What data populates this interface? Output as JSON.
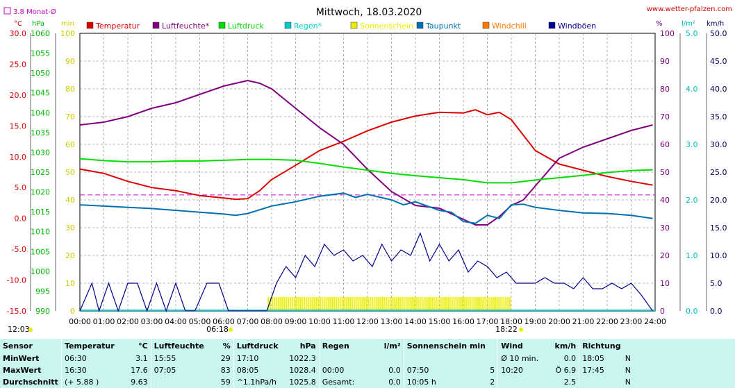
{
  "title": "Mittwoch, 18.03.2020",
  "source": "www.wetter-pfalzen.com",
  "monthly_avg_label": "3.8 Monat-Ø",
  "colors": {
    "temperature": "#dd0000",
    "humidity": "#800080",
    "pressure": "#00dd00",
    "rain": "#00cccc",
    "sunshine": "#eeee00",
    "dewpoint": "#0070b0",
    "windchill": "#ff7700",
    "gusts": "#000090"
  },
  "chart_data": {
    "type": "line",
    "title": "Mittwoch, 18.03.2020",
    "x_labels": [
      "00:00",
      "01:00",
      "02:00",
      "03:00",
      "04:00",
      "05:00",
      "06:00",
      "07:00",
      "08:00",
      "09:00",
      "10:00",
      "11:00",
      "12:00",
      "13:00",
      "14:00",
      "15:00",
      "16:00",
      "17:00",
      "18:00",
      "19:00",
      "20:00",
      "21:00",
      "22:00",
      "23:00",
      "24:00"
    ],
    "xlim": [
      0,
      24
    ],
    "axes": {
      "temperature": {
        "unit": "°C",
        "range": [
          -15,
          30
        ],
        "ticks": [
          "30.0",
          "25.0",
          "20.0",
          "15.0",
          "10.0",
          "5.0",
          "0.0",
          "-5.0",
          "-10.0",
          "-15.0"
        ]
      },
      "pressure": {
        "unit": "hPa",
        "range": [
          990,
          1060
        ],
        "ticks": [
          "1060",
          "1055",
          "1050",
          "1045",
          "1040",
          "1035",
          "1030",
          "1025",
          "1020",
          "1015",
          "1010",
          "1005",
          "1000",
          "995",
          "990"
        ]
      },
      "sunshine": {
        "unit": "min",
        "range": [
          0,
          100
        ],
        "ticks": [
          "100",
          "90",
          "80",
          "70",
          "60",
          "50",
          "40",
          "30",
          "20",
          "10",
          "0"
        ]
      },
      "humidity": {
        "unit": "%",
        "range": [
          0,
          100
        ],
        "ticks": [
          "100",
          "90",
          "80",
          "70",
          "60",
          "50",
          "40",
          "30",
          "20",
          "10",
          "0"
        ]
      },
      "rain": {
        "unit": "l/m²",
        "range": [
          0,
          5
        ],
        "ticks": [
          "5.0",
          "4.0",
          "3.0",
          "2.0",
          "1.0",
          "0.0"
        ]
      },
      "wind": {
        "unit": "km/h",
        "range": [
          0,
          50
        ],
        "ticks": [
          "50.0",
          "45.0",
          "40.0",
          "35.0",
          "30.0",
          "25.0",
          "20.0",
          "15.0",
          "10.0",
          "5.0",
          "0.0"
        ]
      }
    },
    "legend": [
      "Temperatur",
      "Luftfeuchte*",
      "Luftdruck",
      "Regen*",
      "Sonnenschein",
      "Taupunkt",
      "Windchill",
      "Windböen"
    ],
    "monthly_avg_temperature": 3.8,
    "sunrise": "06:18",
    "sunset": "18:22",
    "daylight": "12:03",
    "series": [
      {
        "name": "Temperatur",
        "color": "#dd0000",
        "axis": "temperature",
        "x": [
          0,
          1,
          2,
          3,
          4,
          5,
          6,
          6.5,
          7,
          7.5,
          8,
          9,
          10,
          11,
          12,
          13,
          14,
          15,
          16,
          16.5,
          17,
          17.5,
          18,
          18.5,
          19,
          20,
          21,
          22,
          23,
          23.9
        ],
        "y": [
          8.0,
          7.3,
          6.0,
          5.0,
          4.5,
          3.7,
          3.3,
          3.1,
          3.2,
          4.5,
          6.3,
          8.6,
          11.0,
          12.5,
          14.2,
          15.6,
          16.6,
          17.2,
          17.1,
          17.6,
          16.8,
          17.2,
          16.0,
          13.5,
          11.0,
          8.8,
          7.8,
          6.8,
          6.0,
          5.4
        ]
      },
      {
        "name": "Luftfeuchte*",
        "color": "#800080",
        "axis": "humidity",
        "x": [
          0,
          1,
          2,
          3,
          4,
          5,
          6,
          6.5,
          7,
          7.5,
          8,
          9,
          10,
          11,
          12,
          13,
          14,
          15,
          16,
          16.5,
          17,
          17.5,
          18,
          18.5,
          19,
          20,
          21,
          22,
          23,
          23.9
        ],
        "y": [
          67,
          68,
          70,
          73,
          75,
          78,
          81,
          82,
          83,
          82,
          80,
          73,
          66,
          60,
          51,
          43,
          38,
          37,
          33,
          31,
          31,
          34,
          38,
          40,
          45,
          55,
          59,
          62,
          65,
          67
        ]
      },
      {
        "name": "Luftdruck",
        "color": "#00dd00",
        "axis": "pressure",
        "x": [
          0,
          1,
          2,
          3,
          4,
          5,
          6,
          7,
          8,
          9,
          10,
          11,
          12,
          13,
          14,
          15,
          16,
          17,
          18,
          19,
          20,
          21,
          22,
          23,
          23.9
        ],
        "y": [
          1028.4,
          1027.9,
          1027.6,
          1027.6,
          1027.8,
          1027.8,
          1028.0,
          1028.2,
          1028.2,
          1028.0,
          1027.2,
          1026.3,
          1025.5,
          1024.7,
          1024.1,
          1023.6,
          1023.1,
          1022.3,
          1022.3,
          1023.0,
          1023.6,
          1024.2,
          1024.9,
          1025.4,
          1025.6
        ]
      },
      {
        "name": "Taupunkt",
        "color": "#0070b0",
        "axis": "temperature",
        "x": [
          0,
          1,
          2,
          3,
          4,
          5,
          6,
          6.5,
          7,
          8,
          9,
          10,
          11,
          11.5,
          12,
          13,
          13.5,
          14,
          15,
          15.5,
          16,
          16.5,
          17,
          17.5,
          18,
          18.5,
          19,
          20,
          21,
          22,
          23,
          23.9
        ],
        "y": [
          2.2,
          2.0,
          1.8,
          1.6,
          1.3,
          1.0,
          0.7,
          0.5,
          0.8,
          2.0,
          2.7,
          3.6,
          4.1,
          3.4,
          3.9,
          3.0,
          2.2,
          2.7,
          1.3,
          1.0,
          -0.5,
          -0.8,
          0.5,
          0.0,
          2.2,
          2.3,
          1.8,
          1.3,
          0.9,
          0.8,
          0.5,
          0.0
        ]
      },
      {
        "name": "Windböen",
        "color": "#000090",
        "axis": "wind",
        "x": [
          0,
          0.5,
          0.8,
          1.2,
          1.6,
          2.0,
          2.4,
          2.8,
          3.2,
          3.6,
          4.0,
          4.4,
          4.8,
          5.3,
          5.8,
          6.2,
          6.6,
          7.0,
          7.4,
          7.8,
          8.2,
          8.6,
          9.0,
          9.4,
          9.8,
          10.2,
          10.6,
          11.0,
          11.4,
          11.8,
          12.2,
          12.6,
          13.0,
          13.4,
          13.8,
          14.2,
          14.6,
          15.0,
          15.4,
          15.8,
          16.2,
          16.6,
          17.0,
          17.4,
          17.8,
          18.2,
          18.6,
          19.0,
          19.4,
          19.8,
          20.2,
          20.6,
          21.0,
          21.4,
          21.8,
          22.2,
          22.6,
          23.0,
          23.4,
          23.9
        ],
        "y": [
          0,
          5,
          0,
          5,
          0,
          5,
          5,
          0,
          5,
          0,
          5,
          0,
          0,
          5,
          5,
          0,
          0,
          0,
          0,
          0,
          5,
          8,
          6,
          10,
          8,
          12,
          10,
          11,
          9,
          10,
          8,
          12,
          9,
          11,
          10,
          14,
          9,
          12,
          9,
          11,
          7,
          9,
          8,
          6,
          7,
          5,
          5,
          5,
          6,
          5,
          5,
          4,
          6,
          4,
          4,
          5,
          4,
          5,
          3,
          0
        ]
      }
    ],
    "sunshine_period": {
      "from": "07:50",
      "to": "18:00",
      "value_min": 5
    }
  },
  "table": {
    "headers": [
      "Sensor",
      "Temperatur",
      "°C",
      "Luftfeuchte",
      "%",
      "Luftdruck",
      "hPa",
      "Regen",
      "l/m²",
      "Sonnenschein min",
      "Wind",
      "km/h",
      "Richtung"
    ],
    "rows": [
      {
        "label": "MinWert",
        "temp_time": "06:30",
        "temp_val": "3.1",
        "hum_time": "15:55",
        "hum_val": "29",
        "press_time": "17:10",
        "press_val": "1022.3",
        "rain_time": "",
        "rain_val": "",
        "sun_time": "",
        "sun_val": "",
        "wind_time": "Ø 10 min.",
        "wind_val": "0.0",
        "dir_time": "18:05",
        "dir_val": "N"
      },
      {
        "label": "MaxWert",
        "temp_time": "16:30",
        "temp_val": "17.6",
        "hum_time": "07:05",
        "hum_val": "83",
        "press_time": "08:05",
        "press_val": "1028.4",
        "rain_time": "00:00",
        "rain_val": "0.0",
        "sun_time": "07:50",
        "sun_val": "5",
        "wind_time": "10:20",
        "wind_val": "Ö 6.9",
        "dir_time": "17:45",
        "dir_val": "N"
      },
      {
        "label": "Durchschnitt",
        "temp_time": "(+ 5.88 )",
        "temp_val": "9.63",
        "hum_time": "",
        "hum_val": "59",
        "press_time": "^1.1hPa/h",
        "press_val": "1025.8",
        "rain_time": "Gesamt:",
        "rain_val": "0.0",
        "sun_time": "10:05 h",
        "sun_val": "2",
        "wind_time": "",
        "wind_val": "2.5",
        "dir_time": "",
        "dir_val": "N"
      }
    ]
  }
}
